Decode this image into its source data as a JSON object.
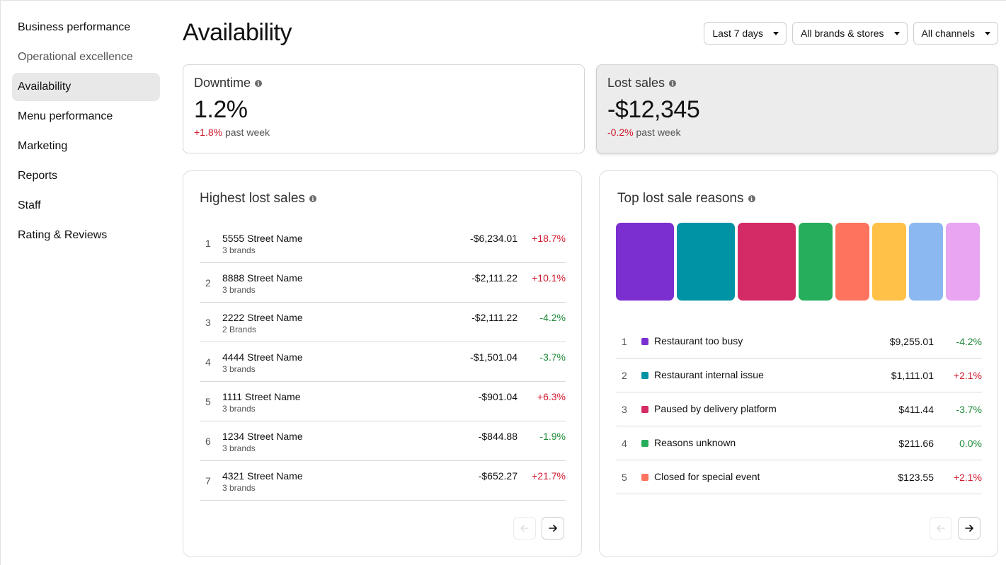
{
  "sidebar": {
    "items": [
      {
        "label": "Business performance"
      },
      {
        "label": "Operational excellence"
      },
      {
        "label": "Availability"
      },
      {
        "label": "Menu performance"
      },
      {
        "label": "Marketing"
      },
      {
        "label": "Reports"
      },
      {
        "label": "Staff"
      },
      {
        "label": "Rating & Reviews"
      }
    ]
  },
  "header": {
    "title": "Availability",
    "filters": {
      "period": "Last 7 days",
      "brands": "All brands & stores",
      "channels": "All channels"
    }
  },
  "metrics": {
    "downtime": {
      "label": "Downtime",
      "value": "1.2%",
      "change": "+1.8%",
      "period": "past week"
    },
    "lost_sales": {
      "label": "Lost sales",
      "value": "-$12,345",
      "change": "-0.2%",
      "period": "past week"
    }
  },
  "highest_lost_sales": {
    "title": "Highest lost sales",
    "rows": [
      {
        "rank": "1",
        "name": "5555 Street Name",
        "sub": "3 brands",
        "amount": "-$6,234.01",
        "change": "+18.7%"
      },
      {
        "rank": "2",
        "name": "8888 Street Name",
        "sub": "3 brands",
        "amount": "-$2,111.22",
        "change": "+10.1%"
      },
      {
        "rank": "3",
        "name": "2222 Street Name",
        "sub": "2 Brands",
        "amount": "-$2,111.22",
        "change": "-4.2%"
      },
      {
        "rank": "4",
        "name": "4444 Street Name",
        "sub": "3 brands",
        "amount": "-$1,501.04",
        "change": "-3.7%"
      },
      {
        "rank": "5",
        "name": "1111 Street Name",
        "sub": "3 brands",
        "amount": "-$901.04",
        "change": "+6.3%"
      },
      {
        "rank": "6",
        "name": "1234 Street Name",
        "sub": "3 brands",
        "amount": "-$844.88",
        "change": "-1.9%"
      },
      {
        "rank": "7",
        "name": "4321 Street Name",
        "sub": "3 brands",
        "amount": "-$652.27",
        "change": "+21.7%"
      }
    ]
  },
  "top_lost_sale_reasons": {
    "title": "Top lost sale reasons",
    "swatch_colors": [
      "#7b2fd0",
      "#0092a5",
      "#d42a66",
      "#27ae5c",
      "#fd735d",
      "#ffc148",
      "#8bb8f0",
      "#e9a4f2"
    ],
    "rows": [
      {
        "rank": "1",
        "color": "#7b2fd0",
        "name": "Restaurant too busy",
        "amount": "$9,255.01",
        "change": "-4.2%"
      },
      {
        "rank": "2",
        "color": "#0092a5",
        "name": "Restaurant internal issue",
        "amount": "$1,111.01",
        "change": "+2.1%"
      },
      {
        "rank": "3",
        "color": "#d42a66",
        "name": "Paused by delivery platform",
        "amount": "$411.44",
        "change": "-3.7%"
      },
      {
        "rank": "4",
        "color": "#27ae5c",
        "name": "Reasons unknown",
        "amount": "$211.66",
        "change": "0.0%"
      },
      {
        "rank": "5",
        "color": "#fd735d",
        "name": "Closed for special event",
        "amount": "$123.55",
        "change": "+2.1%"
      }
    ]
  }
}
